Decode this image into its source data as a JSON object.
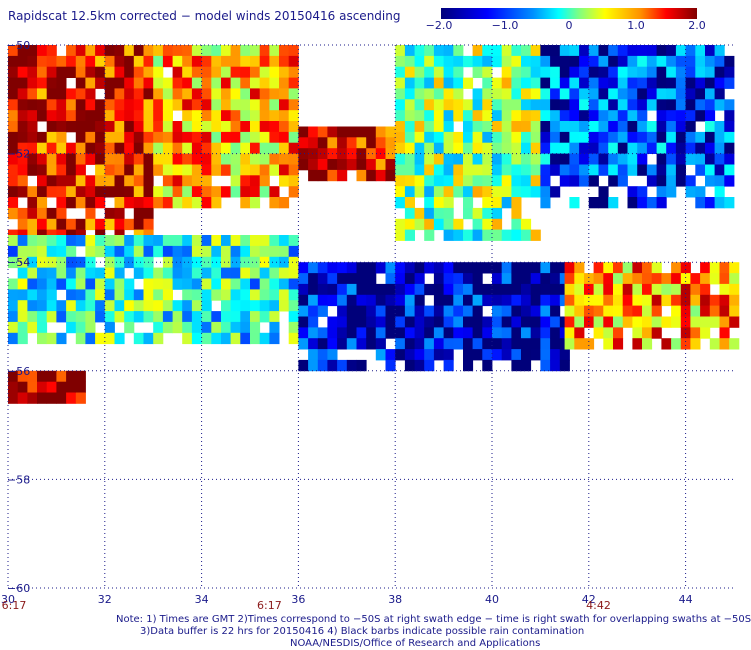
{
  "title": "Rapidscat 12.5km corrected − model winds 20150416 ascending",
  "colorbar": {
    "ticks": [
      "−2.0",
      "−1.0",
      "0",
      "1.0",
      "2.0"
    ],
    "range": [
      -2.0,
      2.0
    ],
    "colors": [
      "#00007a",
      "#0000ff",
      "#0090ff",
      "#00ffff",
      "#80ff80",
      "#ffff00",
      "#ff9000",
      "#ff0000",
      "#800000"
    ]
  },
  "notes": {
    "line1": "Note: 1) Times are GMT 2)Times correspond to −50S at right swath edge − time is right swath for overlapping swaths at −50S",
    "line2": "3)Data buffer is 22 hrs for 20150416 4) Black barbs indicate possible rain contamination",
    "line3": "NOAA/NESDIS/Office of Research and Applications"
  },
  "chart_data": {
    "type": "heatmap",
    "title": "Rapidscat 12.5km corrected − model winds 20150416 ascending",
    "xlabel": "",
    "ylabel": "",
    "xlim": [
      30,
      45
    ],
    "ylim": [
      -60,
      -50
    ],
    "x_ticks": [
      "30",
      "32",
      "34",
      "36",
      "38",
      "40",
      "42",
      "44"
    ],
    "y_ticks": [
      "−50",
      "−52",
      "−54",
      "−56",
      "−58",
      "−60"
    ],
    "grid": true,
    "value_range": [
      -2.0,
      2.0
    ],
    "swath_times": [
      {
        "x": 30,
        "label": "6:17"
      },
      {
        "x": 35.4,
        "label": "6:17"
      },
      {
        "x": 42.2,
        "label": "4:42"
      }
    ],
    "regions": [
      {
        "lon": [
          30,
          33
        ],
        "lat": [
          -53.5,
          -50
        ],
        "value": 1.6
      },
      {
        "lon": [
          33,
          36
        ],
        "lat": [
          -53,
          -50
        ],
        "value": 0.8
      },
      {
        "lon": [
          36,
          38
        ],
        "lat": [
          -52.5,
          -51.5
        ],
        "value": 1.7
      },
      {
        "lon": [
          38,
          41
        ],
        "lat": [
          -53.5,
          -50
        ],
        "value": 0.0
      },
      {
        "lon": [
          41,
          45
        ],
        "lat": [
          -53,
          -50
        ],
        "value": -1.3
      },
      {
        "lon": [
          30,
          36
        ],
        "lat": [
          -55.5,
          -53.5
        ],
        "value": -0.4
      },
      {
        "lon": [
          36,
          41.5
        ],
        "lat": [
          -56,
          -54
        ],
        "value": -1.8
      },
      {
        "lon": [
          41.5,
          45
        ],
        "lat": [
          -55.5,
          -54
        ],
        "value": 0.9
      },
      {
        "lon": [
          30,
          31.5
        ],
        "lat": [
          -56.6,
          -56
        ],
        "value": 2.0
      }
    ]
  }
}
